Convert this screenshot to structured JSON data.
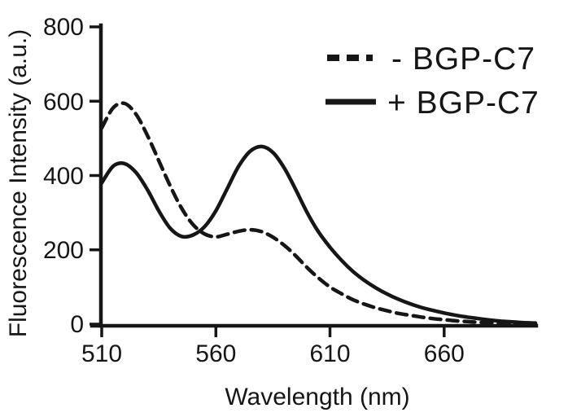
{
  "figure": {
    "background": "#ffffff",
    "ink_color": "#161616"
  },
  "chart_data": {
    "type": "line",
    "title": "",
    "xlabel": "Wavelength (nm)",
    "ylabel": "Fluorescence Intensity (a.u.)",
    "xlim": [
      510,
      700
    ],
    "ylim": [
      0,
      800
    ],
    "x_ticks": [
      510,
      560,
      610,
      660
    ],
    "y_ticks": [
      0,
      200,
      400,
      600,
      800
    ],
    "grid": false,
    "legend_position": "top-right",
    "x": [
      510,
      515,
      520,
      525,
      530,
      535,
      540,
      545,
      550,
      555,
      560,
      565,
      570,
      575,
      580,
      585,
      590,
      595,
      600,
      605,
      610,
      615,
      620,
      625,
      630,
      635,
      640,
      645,
      650,
      655,
      660,
      665,
      670,
      675,
      680,
      685,
      690,
      695,
      700
    ],
    "series": [
      {
        "name": "- BGP-C7",
        "line_style": "dashed",
        "color": "#161616",
        "peaks": [
          {
            "x": 518,
            "y": 595
          },
          {
            "x": 576,
            "y": 255
          }
        ],
        "values": [
          528,
          582,
          594,
          565,
          508,
          440,
          372,
          312,
          268,
          243,
          235,
          242,
          250,
          254,
          249,
          234,
          212,
          184,
          152,
          124,
          100,
          82,
          66,
          54,
          44,
          36,
          29,
          24,
          19,
          15,
          12,
          9,
          7,
          5,
          4,
          3,
          2,
          1,
          1
        ]
      },
      {
        "name": "+ BGP-C7",
        "line_style": "solid",
        "color": "#161616",
        "peaks": [
          {
            "x": 518,
            "y": 433
          },
          {
            "x": 579,
            "y": 480
          }
        ],
        "values": [
          380,
          425,
          432,
          408,
          362,
          305,
          258,
          236,
          240,
          262,
          305,
          365,
          425,
          465,
          478,
          462,
          420,
          362,
          300,
          248,
          207,
          172,
          142,
          118,
          98,
          81,
          67,
          55,
          45,
          37,
          30,
          24,
          19,
          15,
          11,
          8,
          6,
          4,
          3
        ]
      }
    ]
  }
}
